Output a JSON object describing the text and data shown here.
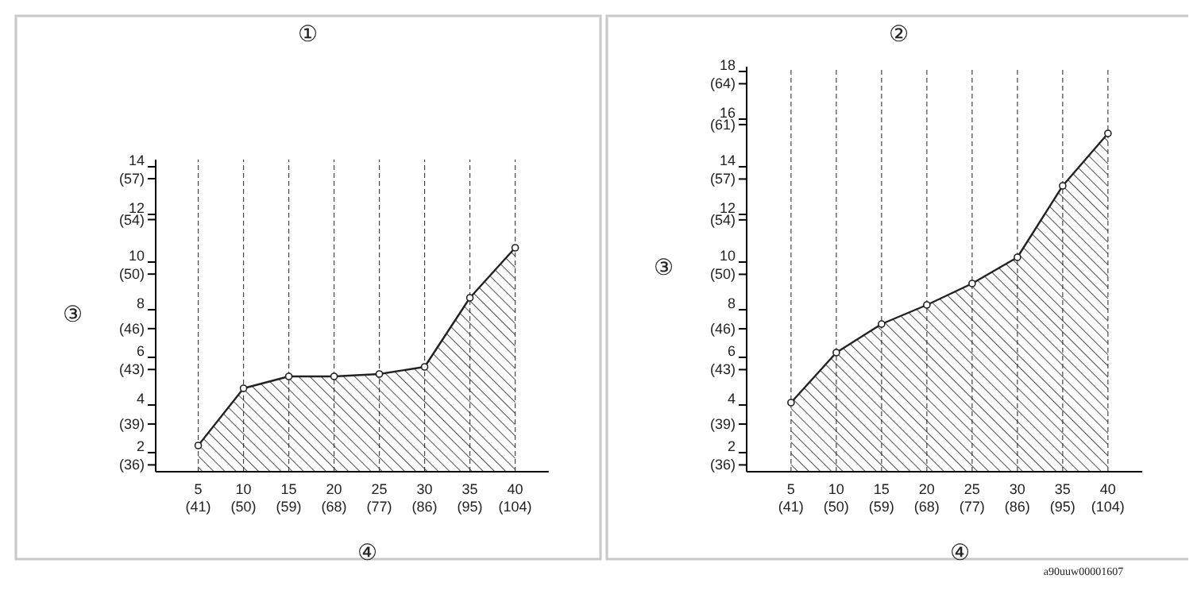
{
  "chart_data": [
    {
      "type": "area",
      "title": "①",
      "xlabel": "④",
      "y2label": "③",
      "x": [
        5,
        10,
        15,
        20,
        25,
        30,
        35,
        40
      ],
      "series": [
        {
          "color": "#222222",
          "values": [
            2.3,
            4.7,
            5.2,
            5.2,
            5.3,
            5.6,
            8.5,
            10.6
          ]
        }
      ],
      "xlim": [
        0.3,
        43.7
      ],
      "ylim": [
        1.2,
        14.3
      ],
      "xticks": [
        5,
        10,
        15,
        20,
        25,
        30,
        35,
        40
      ],
      "x2lim": [
        32.54,
        110.66
      ],
      "x2ticks": [
        {
          "value": 41,
          "label": "(41)"
        },
        {
          "value": 50,
          "label": "(50)"
        },
        {
          "value": 59,
          "label": "(59)"
        },
        {
          "value": 68,
          "label": "(68)"
        },
        {
          "value": 77,
          "label": "(77)"
        },
        {
          "value": 86,
          "label": "(86)"
        },
        {
          "value": 95,
          "label": "(95)"
        },
        {
          "value": 104,
          "label": "(104)"
        }
      ],
      "yticks": [
        2,
        4,
        6,
        8,
        10,
        12,
        14
      ],
      "y2lim": [
        35.5,
        58.4
      ],
      "y2ticks": [
        {
          "value": 36,
          "label": "(36)"
        },
        {
          "value": 39,
          "label": "(39)"
        },
        {
          "value": 43,
          "label": "(43)"
        },
        {
          "value": 46,
          "label": "(46)"
        },
        {
          "value": 50,
          "label": "(50)"
        },
        {
          "value": 54,
          "label": "(54)"
        },
        {
          "value": 57,
          "label": "(57)"
        }
      ],
      "grid": "x",
      "marker": "circle"
    },
    {
      "type": "area",
      "title": "②",
      "xlabel": "④",
      "y2label": "③",
      "x": [
        5,
        10,
        15,
        20,
        25,
        30,
        35,
        40
      ],
      "series": [
        {
          "color": "#222222",
          "values": [
            4.1,
            6.2,
            7.4,
            8.2,
            9.1,
            10.2,
            13.2,
            15.4
          ]
        }
      ],
      "xlim": [
        0.1,
        43.8
      ],
      "ylim": [
        1.2,
        18.2
      ],
      "xticks": [
        5,
        10,
        15,
        20,
        25,
        30,
        35,
        40
      ],
      "x2lim": [
        32.18,
        110.84
      ],
      "x2ticks": [
        {
          "value": 41,
          "label": "(41)"
        },
        {
          "value": 50,
          "label": "(50)"
        },
        {
          "value": 59,
          "label": "(59)"
        },
        {
          "value": 68,
          "label": "(68)"
        },
        {
          "value": 77,
          "label": "(77)"
        },
        {
          "value": 86,
          "label": "(86)"
        },
        {
          "value": 95,
          "label": "(95)"
        },
        {
          "value": 104,
          "label": "(104)"
        }
      ],
      "yticks": [
        2,
        4,
        6,
        8,
        10,
        12,
        14,
        16,
        18
      ],
      "y2lim": [
        35.5,
        65.25
      ],
      "y2ticks": [
        {
          "value": 36,
          "label": "(36)"
        },
        {
          "value": 39,
          "label": "(39)"
        },
        {
          "value": 43,
          "label": "(43)"
        },
        {
          "value": 46,
          "label": "(46)"
        },
        {
          "value": 50,
          "label": "(50)"
        },
        {
          "value": 54,
          "label": "(54)"
        },
        {
          "value": 57,
          "label": "(57)"
        },
        {
          "value": 61,
          "label": "(61)"
        },
        {
          "value": 64,
          "label": "(64)"
        }
      ],
      "grid": "x",
      "marker": "circle",
      "annotations": [
        "a90uuw00001607"
      ]
    }
  ]
}
